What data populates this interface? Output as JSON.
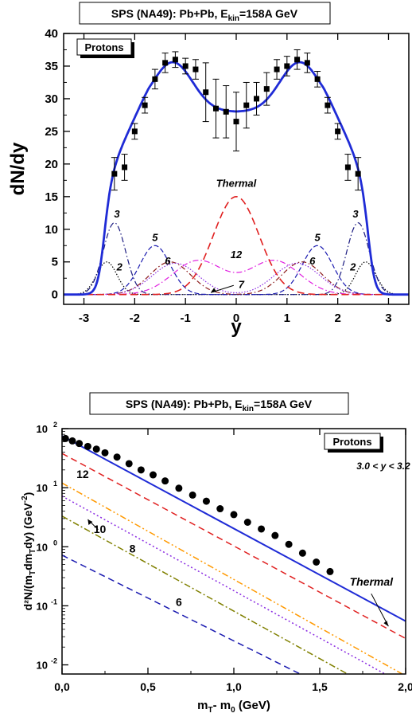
{
  "chart_data": [
    {
      "type": "line",
      "title_main": "SPS (NA49):  Pb+Pb,  E",
      "title_sub": "kin",
      "title_tail": "=158A GeV",
      "xlabel": "y",
      "ylabel": "dN/dy",
      "xlim": [
        -3.4,
        3.4
      ],
      "ylim": [
        -1.5,
        40
      ],
      "x_ticks": [
        -3,
        -2,
        -1,
        0,
        1,
        2,
        3
      ],
      "x_tick_labels": [
        "-3",
        "-2",
        "-1",
        "0",
        "1",
        "2",
        "3"
      ],
      "y_ticks": [
        0,
        5,
        10,
        15,
        20,
        25,
        30,
        35,
        40
      ],
      "y_tick_labels": [
        "0",
        "5",
        "10",
        "15",
        "20",
        "25",
        "30",
        "35",
        "40"
      ],
      "legend": "Protons",
      "data_points": {
        "x": [
          -2.4,
          -2.2,
          -2.0,
          -1.8,
          -1.6,
          -1.4,
          -1.2,
          -1.0,
          -0.8,
          -0.6,
          -0.4,
          -0.2,
          0.0,
          0.2,
          0.4,
          0.6,
          0.8,
          1.0,
          1.2,
          1.4,
          1.6,
          1.8,
          2.0,
          2.2,
          2.4
        ],
        "y": [
          18.5,
          19.5,
          25.0,
          29.0,
          33.0,
          35.5,
          36.0,
          35.0,
          34.5,
          31.0,
          28.5,
          28.0,
          26.5,
          29.0,
          30.0,
          31.5,
          34.5,
          35.0,
          36.0,
          35.5,
          33.0,
          29.0,
          25.0,
          19.5,
          18.5
        ],
        "err": [
          2.5,
          2.0,
          1.2,
          1.2,
          1.5,
          1.5,
          1.2,
          1.2,
          1.5,
          4.5,
          4.5,
          4.0,
          4.5,
          3.5,
          2.5,
          2.5,
          1.5,
          1.5,
          1.5,
          1.5,
          1.2,
          1.2,
          1.2,
          2.0,
          2.5
        ]
      },
      "total_curve": {
        "color": "#1f2bd6"
      },
      "thermal": {
        "label": "Thermal",
        "amp": 15,
        "mu": 0,
        "sigma": 0.45,
        "color": "#e02020"
      },
      "components": [
        {
          "label": "2",
          "amp": 5.0,
          "mu": 2.55,
          "sigma": 0.2,
          "color": "#000000",
          "dash": "1.5,2"
        },
        {
          "label": "3",
          "amp": 11.0,
          "mu": 2.4,
          "sigma": 0.22,
          "color": "#1a1a80",
          "dash": "7,3,1.5,3"
        },
        {
          "label": "5",
          "amp": 7.5,
          "mu": 1.6,
          "sigma": 0.3,
          "color": "#1a1ab0",
          "dash": "6,3"
        },
        {
          "label": "6",
          "amp": 5.0,
          "mu": 1.3,
          "sigma": 0.4,
          "color": "#8b1a1a",
          "dash": "6,3,1.5,3"
        },
        {
          "label": "7",
          "amp": 4.8,
          "mu": 1.2,
          "sigma": 0.45,
          "color": "#8a2be2",
          "dash": "1.5,2"
        },
        {
          "label": "12",
          "amp": 5.2,
          "mu": 0.75,
          "sigma": 0.5,
          "color": "#e020e0",
          "dash": "7,3,1.5,3"
        }
      ]
    },
    {
      "type": "line",
      "title_main": "SPS (NA49):  Pb+Pb,  E",
      "title_sub": "kin",
      "title_tail": "=158A GeV",
      "xlabel_main": "m",
      "xlabel_sub1": "T",
      "xlabel_mid": "- m",
      "xlabel_sub2": "0",
      "xlabel_tail": "  (GeV)",
      "ylabel_text": "d²N/(m",
      "ylabel_sub1": "T",
      "ylabel_mid": "dm",
      "ylabel_sub2": "T",
      "ylabel_tail": "dy)  (GeV",
      "ylabel_sup": "-2",
      "ylabel_end": ")",
      "xlim": [
        0,
        2.0
      ],
      "y_log": true,
      "ylim": [
        0.007,
        100
      ],
      "x_ticks": [
        0,
        0.5,
        1.0,
        1.5,
        2.0
      ],
      "x_tick_labels": [
        "0,0",
        "0,5",
        "1,0",
        "1,5",
        "2,0"
      ],
      "y_ticks": [
        0.01,
        0.1,
        1,
        10,
        100
      ],
      "y_tick_base": "10",
      "y_tick_exps": [
        "-2",
        "-1",
        "0",
        "1",
        "2"
      ],
      "legend": "Protons",
      "annotation": "3.0 < y < 3.2",
      "thermal_label": "Thermal",
      "data_points": {
        "x": [
          0.02,
          0.06,
          0.1,
          0.15,
          0.2,
          0.25,
          0.32,
          0.39,
          0.46,
          0.53,
          0.6,
          0.68,
          0.76,
          0.84,
          0.92,
          1.0,
          1.08,
          1.16,
          1.24,
          1.32,
          1.4,
          1.48,
          1.56
        ],
        "y": [
          68,
          62,
          56,
          50,
          45,
          39,
          33,
          25.5,
          20,
          16.5,
          13,
          9.8,
          7.5,
          5.9,
          4.4,
          3.5,
          2.6,
          2.0,
          1.55,
          1.1,
          0.78,
          0.55,
          0.38
        ]
      },
      "lines": [
        {
          "label": "",
          "y0": 75,
          "y2": 0.055,
          "color": "#1f2bd6",
          "style": "solid"
        },
        {
          "label": "Thermal",
          "y0": 38,
          "y2": 0.028,
          "color": "#e02020",
          "style": "dash"
        },
        {
          "label": "12",
          "y0": 12,
          "y2": 0.0065,
          "color": "#ff9900",
          "style": "dashdotdot"
        },
        {
          "label": "10",
          "y0": 7.2,
          "y2": 0.0045,
          "color": "#8a2be2",
          "style": "dot"
        },
        {
          "label": "8",
          "y0": 3.3,
          "y2": 0.002,
          "color": "#808000",
          "style": "dashdot"
        },
        {
          "label": "6",
          "y0": 0.72,
          "y2": 0.0009,
          "color": "#1a1ab0",
          "style": "dash"
        }
      ]
    }
  ]
}
